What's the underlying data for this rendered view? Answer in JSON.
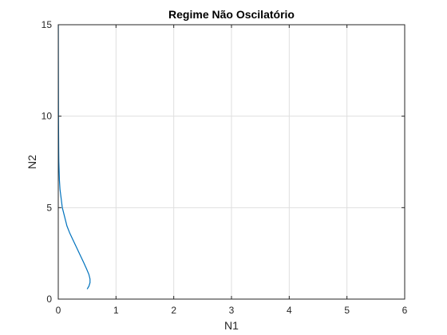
{
  "chart_data": {
    "type": "line",
    "title": "Regime Não Oscilatório",
    "xlabel": "N1",
    "ylabel": "N2",
    "xlim": [
      0,
      6
    ],
    "ylim": [
      0,
      15
    ],
    "xticks": [
      0,
      1,
      2,
      3,
      4,
      5,
      6
    ],
    "yticks": [
      0,
      5,
      10,
      15
    ],
    "grid": true,
    "series_color": "#0072bd",
    "series": [
      {
        "x": [
          0.5,
          0.53,
          0.55,
          0.55,
          0.53,
          0.49,
          0.44,
          0.38,
          0.32,
          0.26,
          0.2,
          0.15,
          0.11,
          0.07,
          0.05,
          0.03,
          0.02,
          0.015,
          0.01,
          0.008,
          0.006,
          0.004,
          0.003,
          0.002,
          0.001
        ],
        "y": [
          0.55,
          0.7,
          0.9,
          1.1,
          1.35,
          1.65,
          2.0,
          2.4,
          2.8,
          3.2,
          3.6,
          4.0,
          4.5,
          5.0,
          5.5,
          6.0,
          6.5,
          7.0,
          7.5,
          8.0,
          9.0,
          10.0,
          11.5,
          13.0,
          15.0
        ]
      }
    ]
  }
}
